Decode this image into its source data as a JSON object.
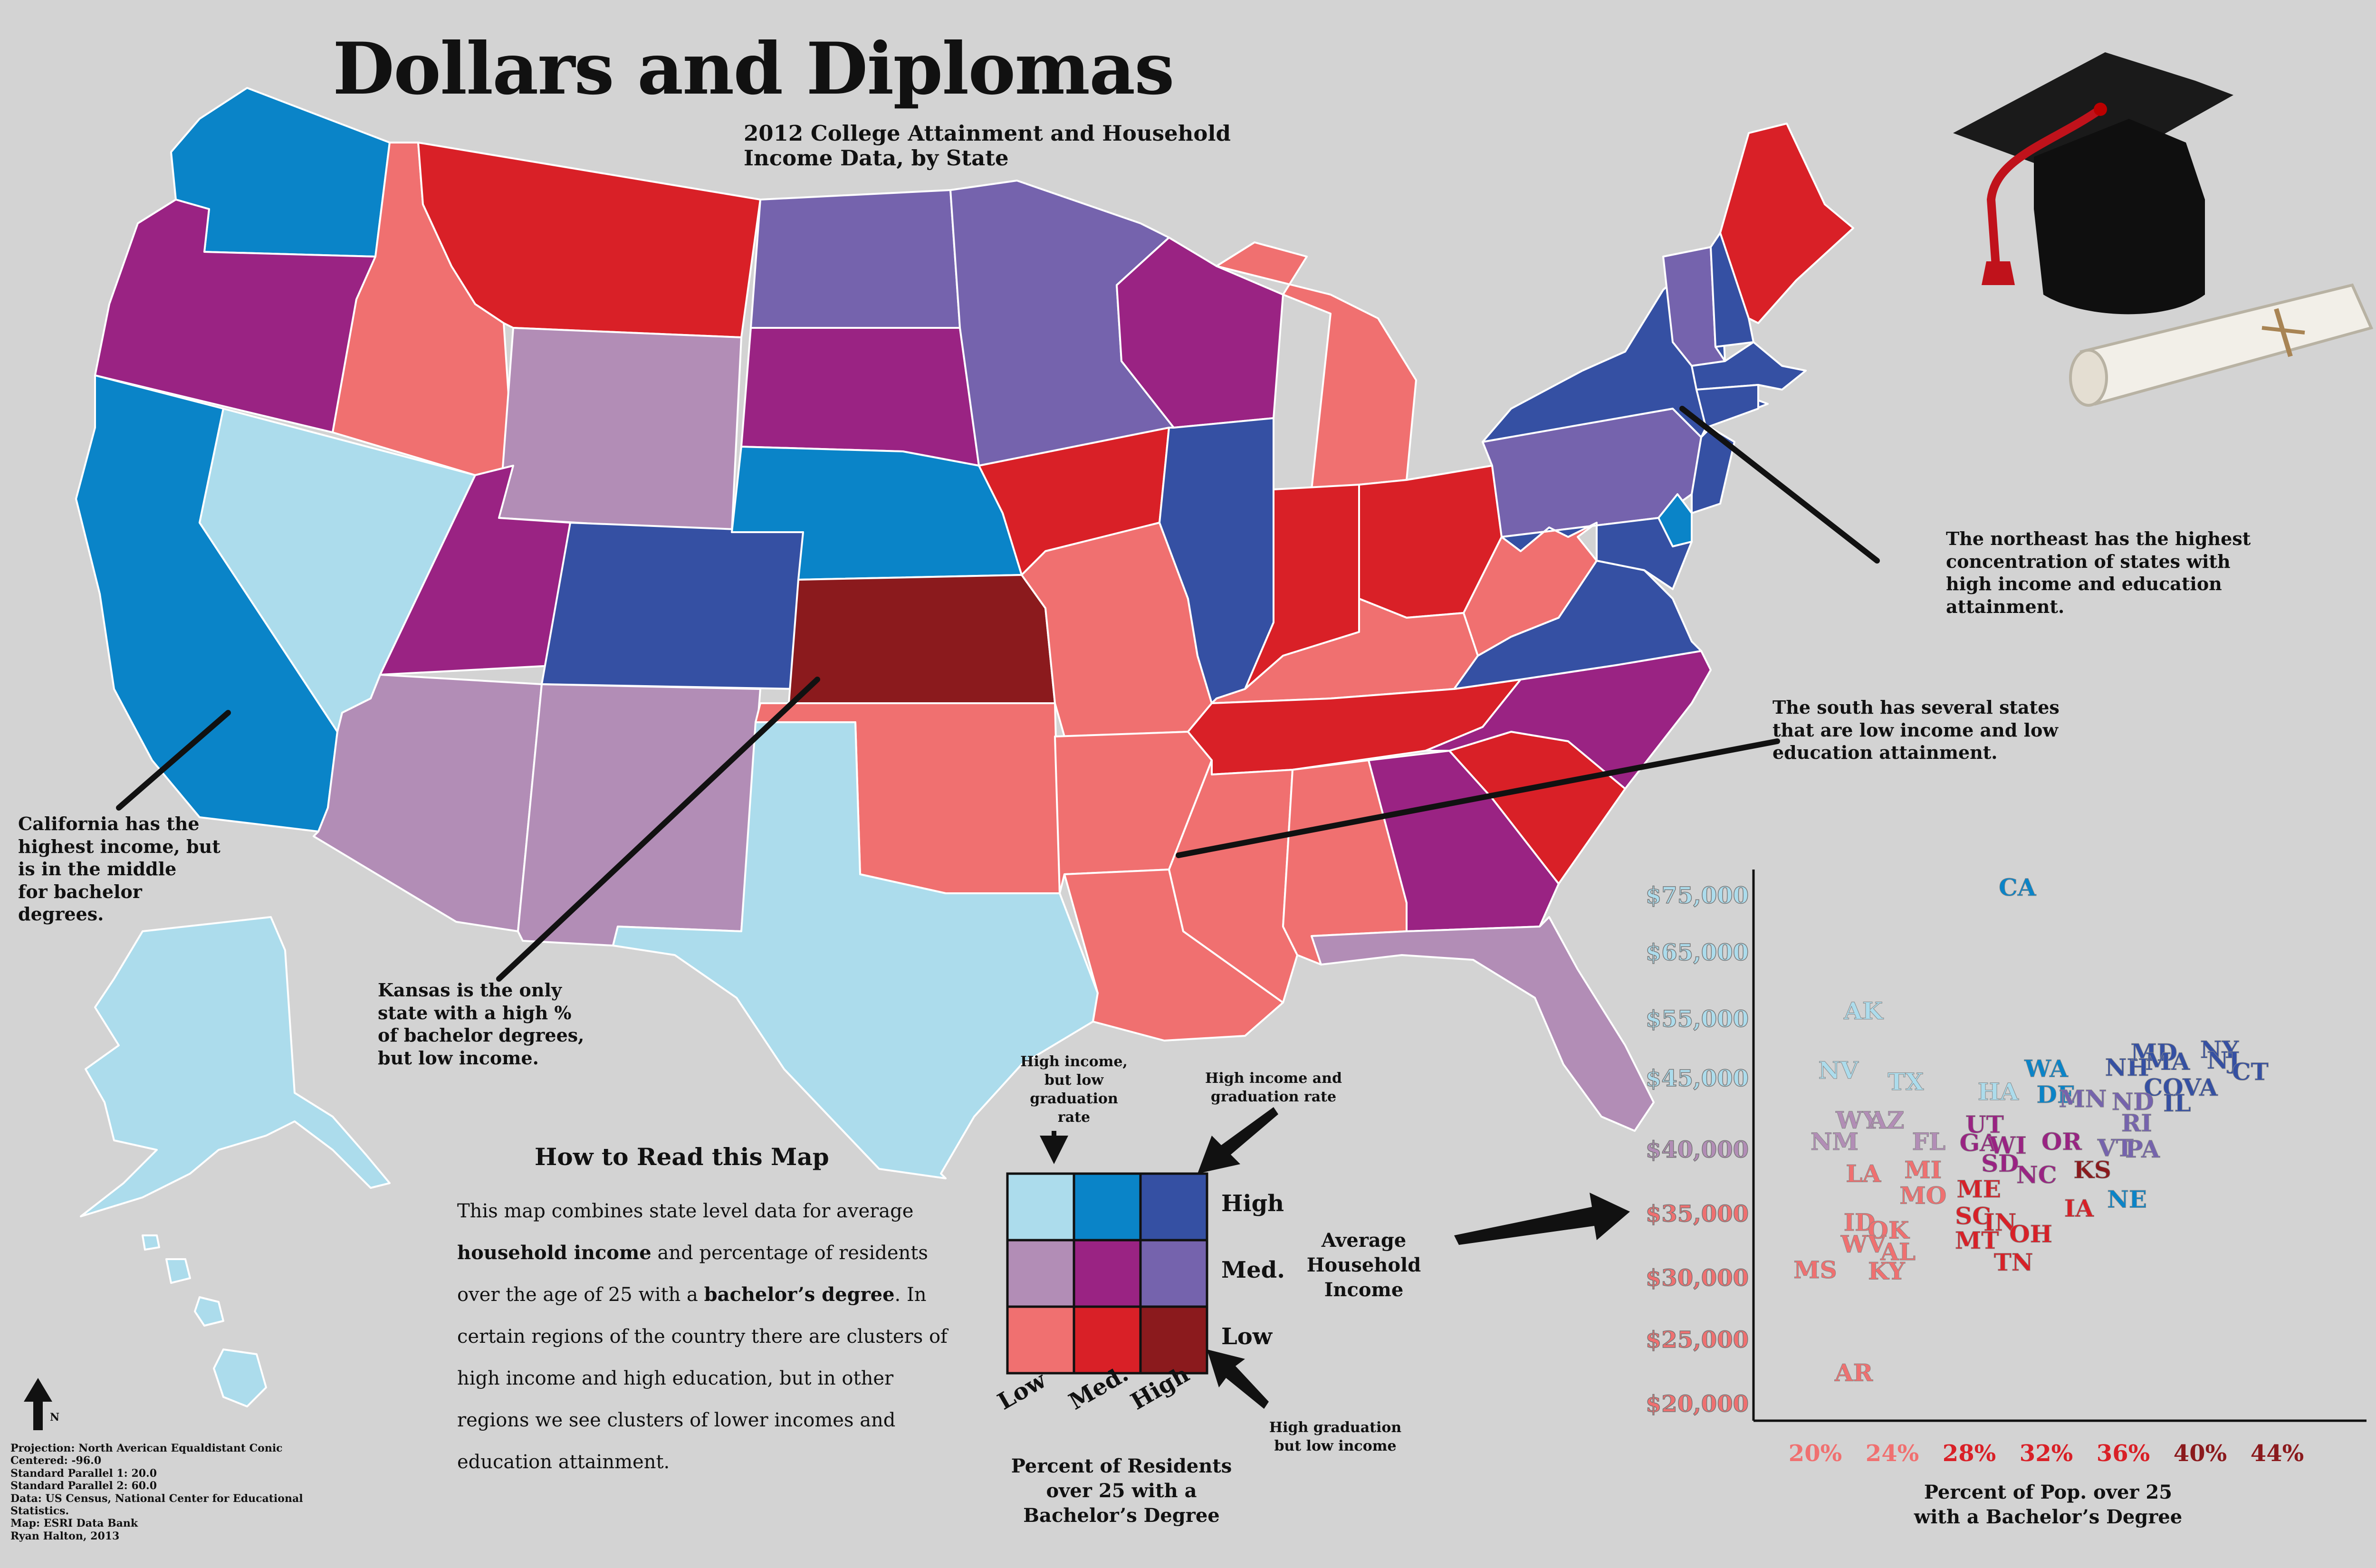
{
  "title": "Dollars and Diplomas",
  "subtitle_line1": "2012 College Attainment and Household",
  "subtitle_line2": "Income Data, by State",
  "colors": {
    "low_low": "#f07070",
    "low_med": "#d92027",
    "low_high": "#8b1a1d",
    "med_low": "#b28db6",
    "med_med": "#9a2383",
    "med_high": "#7563ad",
    "high_low": "#acdcec",
    "high_med": "#0a84c8",
    "high_high": "#3550a3"
  },
  "annotations": {
    "california": [
      "California has the",
      "highest income, but",
      "is in the middle",
      "for bachelor",
      "degrees."
    ],
    "kansas": [
      "Kansas is the only",
      "state with a high %",
      "of bachelor degrees,",
      "but low income."
    ],
    "northeast": [
      "The northeast has the highest",
      "concentration of states with",
      "high income and education",
      "attainment."
    ],
    "south": [
      "The south has several states",
      "that are low income and low",
      "education attainment."
    ]
  },
  "how_to_read": {
    "title": "How to Read this Map",
    "p1": "This map combines state level data for average",
    "p2a": "household income",
    "p2b": " and percentage of residents",
    "p3a": "over the age of 25 with a ",
    "p3b": "bachelor’s degree",
    "p3c": ".  In",
    "p4": "certain regions of the country there are clusters of",
    "p5": "high income and high education, but in other",
    "p6": "regions we see clusters of lower incomes and",
    "p7": "education attainment."
  },
  "credits": [
    "Projection: North Averican Equaldistant Conic",
    "Centered: -96.0",
    "Standard Parallel 1: 20.0",
    "Standard Parallel 2: 60.0",
    "Data:  US Census, National Center for Educational",
    "Statistics.",
    "Map: ESRI Data Bank",
    "Ryan Halton, 2013"
  ],
  "north_label": "N",
  "legend": {
    "rows": [
      "High",
      "Med.",
      "Low"
    ],
    "cols": [
      "Low",
      "Med.",
      "High"
    ],
    "y_title": [
      "Average",
      "Household",
      "Income"
    ],
    "x_title": [
      "Percent of  Residents",
      "over 25 with a",
      "Bachelor’s Degree"
    ],
    "note_tl": [
      "High income,",
      "but low graduation",
      "rate"
    ],
    "note_tr": [
      "High income and",
      "graduation rate"
    ],
    "note_br": [
      "High graduation",
      "but low income"
    ]
  },
  "chart_data": {
    "type": "scatter",
    "xlabel": "Percent of Pop. over 25 with a Bachelor’s Degree",
    "xlabel_lines": [
      "Percent of Pop. over 25",
      "with a Bachelor’s Degree"
    ],
    "ylabel": "",
    "x_ticks": [
      "20%",
      "24%",
      "28%",
      "32%",
      "36%",
      "40%",
      "44%"
    ],
    "y_ticks": [
      "$20,000",
      "$25,000",
      "$30,000",
      "$35,000",
      "$40,000",
      "$45,000",
      "$55,000",
      "$65,000",
      "$75,000"
    ],
    "points": [
      {
        "label": "CA",
        "x": 30.5,
        "y": 75000,
        "c": "high_med"
      },
      {
        "label": "AK",
        "x": 22.5,
        "y": 55000,
        "c": "high_low"
      },
      {
        "label": "NV",
        "x": 21.2,
        "y": 45000,
        "c": "high_low"
      },
      {
        "label": "TX",
        "x": 24.7,
        "y": 44200,
        "c": "high_low"
      },
      {
        "label": "HA",
        "x": 29.5,
        "y": 43500,
        "c": "high_low"
      },
      {
        "label": "WA",
        "x": 32.0,
        "y": 45300,
        "c": "high_med"
      },
      {
        "label": "DE",
        "x": 32.5,
        "y": 43300,
        "c": "high_med"
      },
      {
        "label": "MN",
        "x": 33.9,
        "y": 43000,
        "c": "med_high"
      },
      {
        "label": "NH",
        "x": 36.2,
        "y": 45500,
        "c": "high_high"
      },
      {
        "label": "MD",
        "x": 37.6,
        "y": 48000,
        "c": "high_high"
      },
      {
        "label": "MA",
        "x": 38.3,
        "y": 46500,
        "c": "high_high"
      },
      {
        "label": "NY",
        "x": 41.0,
        "y": 48500,
        "c": "high_high"
      },
      {
        "label": "NJ",
        "x": 41.2,
        "y": 46700,
        "c": "high_high"
      },
      {
        "label": "CT",
        "x": 42.6,
        "y": 44900,
        "c": "high_high"
      },
      {
        "label": "CO",
        "x": 38.1,
        "y": 43800,
        "c": "high_high"
      },
      {
        "label": "VA",
        "x": 40.0,
        "y": 43800,
        "c": "high_high"
      },
      {
        "label": "ND",
        "x": 36.5,
        "y": 42800,
        "c": "med_high"
      },
      {
        "label": "IL",
        "x": 38.8,
        "y": 42700,
        "c": "high_high"
      },
      {
        "label": "RI",
        "x": 36.7,
        "y": 41300,
        "c": "med_high"
      },
      {
        "label": "WY",
        "x": 22.2,
        "y": 41500,
        "c": "med_low"
      },
      {
        "label": "AZ",
        "x": 23.7,
        "y": 41500,
        "c": "med_low"
      },
      {
        "label": "NM",
        "x": 21.0,
        "y": 40000,
        "c": "med_low"
      },
      {
        "label": "FL",
        "x": 25.9,
        "y": 40000,
        "c": "med_low"
      },
      {
        "label": "UT",
        "x": 28.8,
        "y": 41200,
        "c": "med_med"
      },
      {
        "label": "GA",
        "x": 28.5,
        "y": 39900,
        "c": "med_med"
      },
      {
        "label": "WI",
        "x": 30.0,
        "y": 39700,
        "c": "med_med"
      },
      {
        "label": "OR",
        "x": 32.8,
        "y": 40000,
        "c": "med_med"
      },
      {
        "label": "VT",
        "x": 35.6,
        "y": 39500,
        "c": "med_high"
      },
      {
        "label": "PA",
        "x": 37.0,
        "y": 39400,
        "c": "med_high"
      },
      {
        "label": "SD",
        "x": 29.6,
        "y": 38300,
        "c": "med_med"
      },
      {
        "label": "NC",
        "x": 31.5,
        "y": 37400,
        "c": "med_med"
      },
      {
        "label": "KS",
        "x": 34.4,
        "y": 37800,
        "c": "low_high"
      },
      {
        "label": "NE",
        "x": 36.2,
        "y": 35500,
        "c": "high_med"
      },
      {
        "label": "IA",
        "x": 33.7,
        "y": 34800,
        "c": "low_med"
      },
      {
        "label": "LA",
        "x": 22.5,
        "y": 37500,
        "c": "low_low"
      },
      {
        "label": "MI",
        "x": 25.6,
        "y": 37800,
        "c": "low_low"
      },
      {
        "label": "MO",
        "x": 25.6,
        "y": 35800,
        "c": "low_low"
      },
      {
        "label": "ME",
        "x": 28.5,
        "y": 36300,
        "c": "low_med"
      },
      {
        "label": "SC",
        "x": 28.2,
        "y": 34200,
        "c": "low_med"
      },
      {
        "label": "IN",
        "x": 29.6,
        "y": 33700,
        "c": "low_med"
      },
      {
        "label": "OH",
        "x": 31.2,
        "y": 32800,
        "c": "low_med"
      },
      {
        "label": "MT",
        "x": 28.4,
        "y": 32300,
        "c": "low_med"
      },
      {
        "label": "TN",
        "x": 30.3,
        "y": 30600,
        "c": "low_med"
      },
      {
        "label": "ID",
        "x": 22.3,
        "y": 33700,
        "c": "low_low"
      },
      {
        "label": "OK",
        "x": 23.8,
        "y": 33100,
        "c": "low_low"
      },
      {
        "label": "WV",
        "x": 22.5,
        "y": 32000,
        "c": "low_low"
      },
      {
        "label": "AL",
        "x": 24.3,
        "y": 31400,
        "c": "low_low"
      },
      {
        "label": "KY",
        "x": 23.7,
        "y": 29900,
        "c": "low_low"
      },
      {
        "label": "MS",
        "x": 20.0,
        "y": 30000,
        "c": "low_low"
      },
      {
        "label": "AR",
        "x": 22.0,
        "y": 21800,
        "c": "low_low"
      }
    ]
  },
  "states": [
    {
      "name": "WA",
      "c": "high_med"
    },
    {
      "name": "OR",
      "c": "med_med"
    },
    {
      "name": "CA",
      "c": "high_med"
    },
    {
      "name": "NV",
      "c": "high_low"
    },
    {
      "name": "ID",
      "c": "low_low"
    },
    {
      "name": "MT",
      "c": "low_med"
    },
    {
      "name": "WY",
      "c": "med_low"
    },
    {
      "name": "UT",
      "c": "med_med"
    },
    {
      "name": "AZ",
      "c": "med_low"
    },
    {
      "name": "CO",
      "c": "high_high"
    },
    {
      "name": "NM",
      "c": "med_low"
    },
    {
      "name": "ND",
      "c": "med_high"
    },
    {
      "name": "SD",
      "c": "med_med"
    },
    {
      "name": "NE",
      "c": "high_med"
    },
    {
      "name": "KS",
      "c": "low_high"
    },
    {
      "name": "OK",
      "c": "low_low"
    },
    {
      "name": "TX",
      "c": "high_low"
    },
    {
      "name": "MN",
      "c": "med_high"
    },
    {
      "name": "IA",
      "c": "low_med"
    },
    {
      "name": "MO",
      "c": "low_low"
    },
    {
      "name": "AR",
      "c": "low_low"
    },
    {
      "name": "LA",
      "c": "low_low"
    },
    {
      "name": "WI",
      "c": "med_med"
    },
    {
      "name": "IL",
      "c": "high_high"
    },
    {
      "name": "MI",
      "c": "low_low"
    },
    {
      "name": "IN",
      "c": "low_med"
    },
    {
      "name": "OH",
      "c": "low_med"
    },
    {
      "name": "KY",
      "c": "low_low"
    },
    {
      "name": "TN",
      "c": "low_med"
    },
    {
      "name": "MS",
      "c": "low_low"
    },
    {
      "name": "AL",
      "c": "low_low"
    },
    {
      "name": "GA",
      "c": "med_med"
    },
    {
      "name": "FL",
      "c": "med_low"
    },
    {
      "name": "SC",
      "c": "low_med"
    },
    {
      "name": "NC",
      "c": "med_med"
    },
    {
      "name": "VA",
      "c": "high_high"
    },
    {
      "name": "WV",
      "c": "low_low"
    },
    {
      "name": "PA",
      "c": "med_high"
    },
    {
      "name": "NY",
      "c": "high_high"
    },
    {
      "name": "VT",
      "c": "med_high"
    },
    {
      "name": "NH",
      "c": "high_high"
    },
    {
      "name": "ME",
      "c": "low_med"
    },
    {
      "name": "MA",
      "c": "high_high"
    },
    {
      "name": "CT",
      "c": "high_high"
    },
    {
      "name": "NJ",
      "c": "high_high"
    },
    {
      "name": "DE",
      "c": "high_med"
    },
    {
      "name": "MD",
      "c": "high_high"
    },
    {
      "name": "AK",
      "c": "high_low"
    },
    {
      "name": "HI",
      "c": "high_low"
    }
  ]
}
